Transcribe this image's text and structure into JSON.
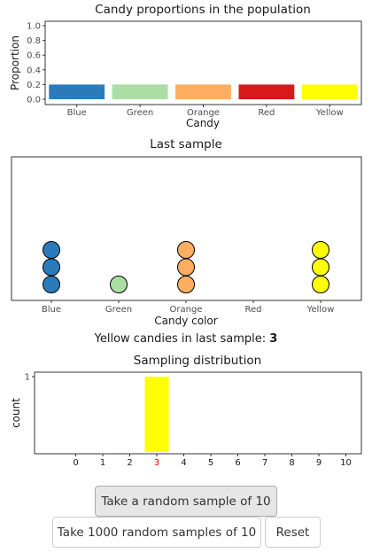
{
  "colors": {
    "Blue": "#2b7bba",
    "Green": "#abdda4",
    "Orange": "#fdae61",
    "Red": "#d7191c",
    "Yellow": "#ffff00"
  },
  "population_chart": {
    "title": "Candy proportions in the population",
    "xlabel": "Candy",
    "ylabel": "Proportion"
  },
  "sample_chart": {
    "title": "Last sample",
    "xlabel": "Candy color"
  },
  "caption": {
    "prefix": "Yellow candies in last sample:",
    "value": "3"
  },
  "dist_chart": {
    "title": "Sampling distribution",
    "ylabel": "count",
    "highlight_tick_color": "#ff0000"
  },
  "buttons": {
    "sample_one": "Take a random sample of 10",
    "sample_many": "Take 1000 random samples of 10",
    "reset": "Reset"
  },
  "chart_data": [
    {
      "type": "bar",
      "title": "Candy proportions in the population",
      "xlabel": "Candy",
      "ylabel": "Proportion",
      "categories": [
        "Blue",
        "Green",
        "Orange",
        "Red",
        "Yellow"
      ],
      "values": [
        0.2,
        0.2,
        0.2,
        0.2,
        0.2
      ],
      "ylim": [
        0,
        1.0
      ],
      "yticks": [
        "0.0",
        "0.2",
        "0.4",
        "0.6",
        "0.8",
        "1.0"
      ],
      "grid": false
    },
    {
      "type": "scatter",
      "title": "Last sample",
      "xlabel": "Candy color",
      "categories": [
        "Blue",
        "Green",
        "Orange",
        "Red",
        "Yellow"
      ],
      "counts": [
        3,
        1,
        3,
        0,
        3
      ],
      "grid": false
    },
    {
      "type": "bar",
      "title": "Sampling distribution",
      "ylabel": "count",
      "x": [
        0,
        1,
        2,
        3,
        4,
        5,
        6,
        7,
        8,
        9,
        10
      ],
      "values": [
        0,
        0,
        0,
        1,
        0,
        0,
        0,
        0,
        0,
        0,
        0
      ],
      "yticks": [
        "1"
      ],
      "highlight_x": 3,
      "grid": false
    }
  ]
}
